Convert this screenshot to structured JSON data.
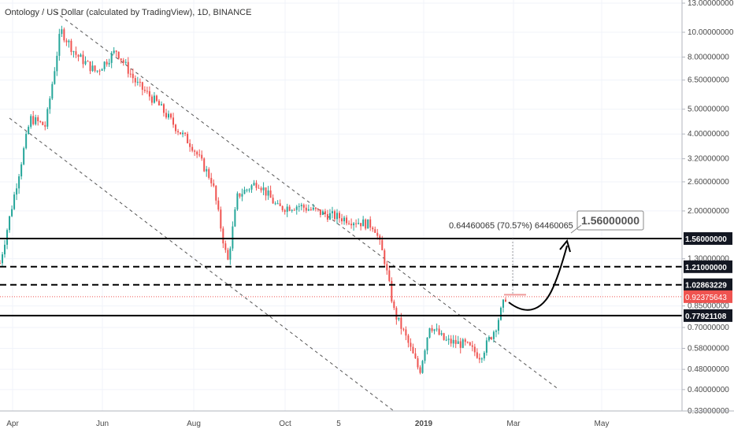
{
  "title": "Ontology / US Dollar (calculated by TradingView), 1D, BINANCE",
  "colors": {
    "up": "#26a69a",
    "down": "#ef5350",
    "line": "#000000",
    "last_price_bg": "#ef5350",
    "grid": "#f0f3fa",
    "channel": "#555555"
  },
  "chart_data": {
    "type": "candlestick",
    "y_scale": "log",
    "x_tick_labels": [
      "Apr",
      "Jun",
      "Aug",
      "Oct",
      "5",
      "2019",
      "Mar",
      "May"
    ],
    "y_tick_labels": [
      {
        "label": "13.00000000",
        "value": 13.0
      },
      {
        "label": "10.00000000",
        "value": 10.0
      },
      {
        "label": "8.00000000",
        "value": 8.0
      },
      {
        "label": "6.50000000",
        "value": 6.5
      },
      {
        "label": "5.00000000",
        "value": 5.0
      },
      {
        "label": "4.00000000",
        "value": 4.0
      },
      {
        "label": "3.20000000",
        "value": 3.2
      },
      {
        "label": "2.60000000",
        "value": 2.6
      },
      {
        "label": "2.00000000",
        "value": 2.0
      },
      {
        "label": "1.30000000",
        "value": 1.3
      },
      {
        "label": "0.85000000",
        "value": 0.85
      },
      {
        "label": "0.70000000",
        "value": 0.7
      },
      {
        "label": "0.58000000",
        "value": 0.58
      },
      {
        "label": "0.48000000",
        "value": 0.48
      },
      {
        "label": "0.40000000",
        "value": 0.4
      },
      {
        "label": "0.33000000",
        "value": 0.33
      }
    ],
    "levels": [
      {
        "label": "1.56000000",
        "value": 1.56,
        "style": "solid"
      },
      {
        "label": "1.21000000",
        "value": 1.21,
        "style": "dashed"
      },
      {
        "label": "1.02863229",
        "value": 1.0286,
        "style": "dashed"
      },
      {
        "label": "0.77921108",
        "value": 0.7792,
        "style": "solid"
      }
    ],
    "last_price": {
      "label": "0.92375643",
      "value": 0.9238
    },
    "target": {
      "label": "1.56000000",
      "value": 1.56
    },
    "measure_label": "0.64460065 (70.57%) 64460065",
    "price_path": [
      {
        "x": 0.0,
        "p": 1.25
      },
      {
        "x": 0.03,
        "p": 2.4
      },
      {
        "x": 0.06,
        "p": 4.6
      },
      {
        "x": 0.09,
        "p": 4.3
      },
      {
        "x": 0.12,
        "p": 10.2
      },
      {
        "x": 0.15,
        "p": 8.2
      },
      {
        "x": 0.19,
        "p": 7.0
      },
      {
        "x": 0.23,
        "p": 8.5
      },
      {
        "x": 0.27,
        "p": 6.3
      },
      {
        "x": 0.31,
        "p": 5.3
      },
      {
        "x": 0.35,
        "p": 4.2
      },
      {
        "x": 0.38,
        "p": 3.6
      },
      {
        "x": 0.42,
        "p": 2.6
      },
      {
        "x": 0.45,
        "p": 1.25
      },
      {
        "x": 0.47,
        "p": 2.3
      },
      {
        "x": 0.51,
        "p": 2.6
      },
      {
        "x": 0.55,
        "p": 2.05
      },
      {
        "x": 0.59,
        "p": 2.1
      },
      {
        "x": 0.64,
        "p": 1.95
      },
      {
        "x": 0.69,
        "p": 1.85
      },
      {
        "x": 0.74,
        "p": 1.75
      },
      {
        "x": 0.76,
        "p": 1.3
      },
      {
        "x": 0.78,
        "p": 0.8
      },
      {
        "x": 0.8,
        "p": 0.66
      },
      {
        "x": 0.83,
        "p": 0.47
      },
      {
        "x": 0.85,
        "p": 0.72
      },
      {
        "x": 0.88,
        "p": 0.62
      },
      {
        "x": 0.92,
        "p": 0.6
      },
      {
        "x": 0.95,
        "p": 0.54
      },
      {
        "x": 0.98,
        "p": 0.7
      },
      {
        "x": 1.0,
        "p": 0.92
      }
    ]
  }
}
